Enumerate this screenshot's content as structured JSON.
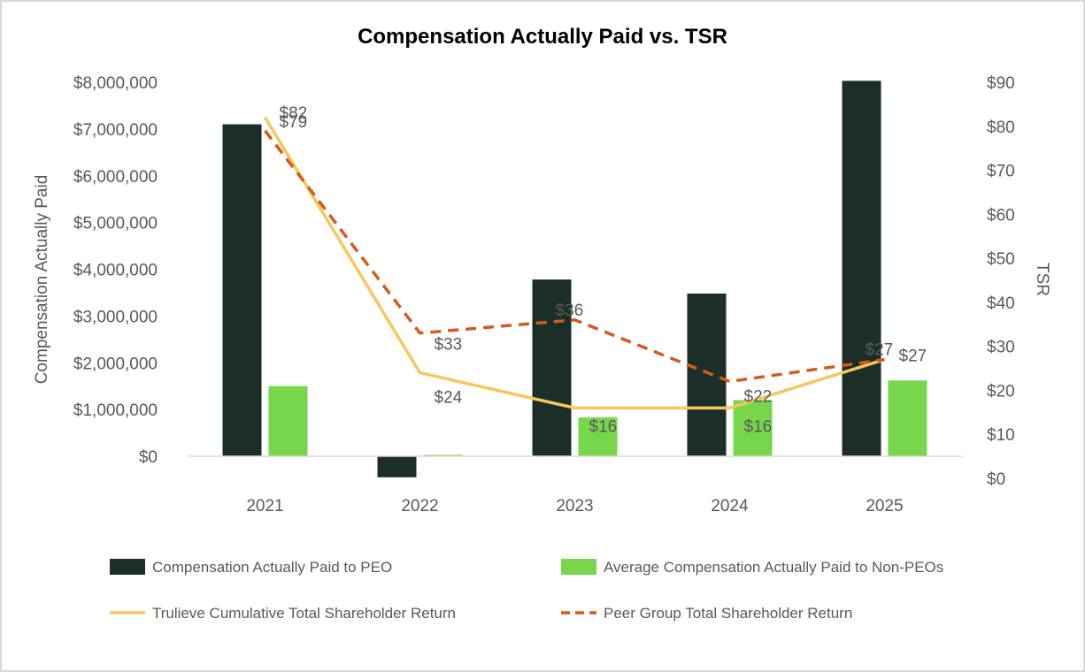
{
  "chart_data": {
    "type": "bar",
    "title": "Compensation Actually Paid vs. TSR",
    "categories": [
      "2021",
      "2022",
      "2023",
      "2024",
      "2025"
    ],
    "y_left": {
      "label": "Compensation Actually Paid",
      "range": [
        0,
        8000000
      ],
      "ticks": [
        {
          "value": 0,
          "label": "$0"
        },
        {
          "value": 1000000,
          "label": "$1,000,000"
        },
        {
          "value": 2000000,
          "label": "$2,000,000"
        },
        {
          "value": 3000000,
          "label": "$3,000,000"
        },
        {
          "value": 4000000,
          "label": "$4,000,000"
        },
        {
          "value": 5000000,
          "label": "$5,000,000"
        },
        {
          "value": 6000000,
          "label": "$6,000,000"
        },
        {
          "value": 7000000,
          "label": "$7,000,000"
        },
        {
          "value": 8000000,
          "label": "$8,000,000"
        }
      ]
    },
    "y_right": {
      "label": "TSR",
      "range": [
        0,
        90
      ],
      "ticks": [
        {
          "value": 0,
          "label": "$0"
        },
        {
          "value": 10,
          "label": "$10"
        },
        {
          "value": 20,
          "label": "$20"
        },
        {
          "value": 30,
          "label": "$30"
        },
        {
          "value": 40,
          "label": "$40"
        },
        {
          "value": 50,
          "label": "$50"
        },
        {
          "value": 60,
          "label": "$60"
        },
        {
          "value": 70,
          "label": "$70"
        },
        {
          "value": 80,
          "label": "$80"
        },
        {
          "value": 90,
          "label": "$90"
        }
      ]
    },
    "bar_series": [
      {
        "name": "Compensation Actually Paid to PEO",
        "color": "#1b2e28",
        "values": [
          7100000,
          -450000,
          3780000,
          3480000,
          8030000
        ]
      },
      {
        "name": "Average Compensation Actually Paid to Non-PEOs",
        "color": "#77d64c",
        "values": [
          1500000,
          30000,
          830000,
          1200000,
          1620000
        ]
      }
    ],
    "line_series": [
      {
        "name": "Trulieve Cumulative Total Shareholder Return",
        "color": "#f5c75e",
        "dash": "solid",
        "values": [
          82,
          24,
          16,
          16,
          27
        ],
        "labels": [
          "$82",
          "$24",
          "$16",
          "$16",
          "$27"
        ]
      },
      {
        "name": "Peer Group Total Shareholder Return",
        "color": "#d65a1c",
        "dash": "dashed",
        "values": [
          79,
          33,
          36,
          22,
          27
        ],
        "labels": [
          "$79",
          "$33",
          "$36",
          "$22",
          "$27"
        ]
      }
    ],
    "grid": false,
    "legend_position": "bottom"
  }
}
